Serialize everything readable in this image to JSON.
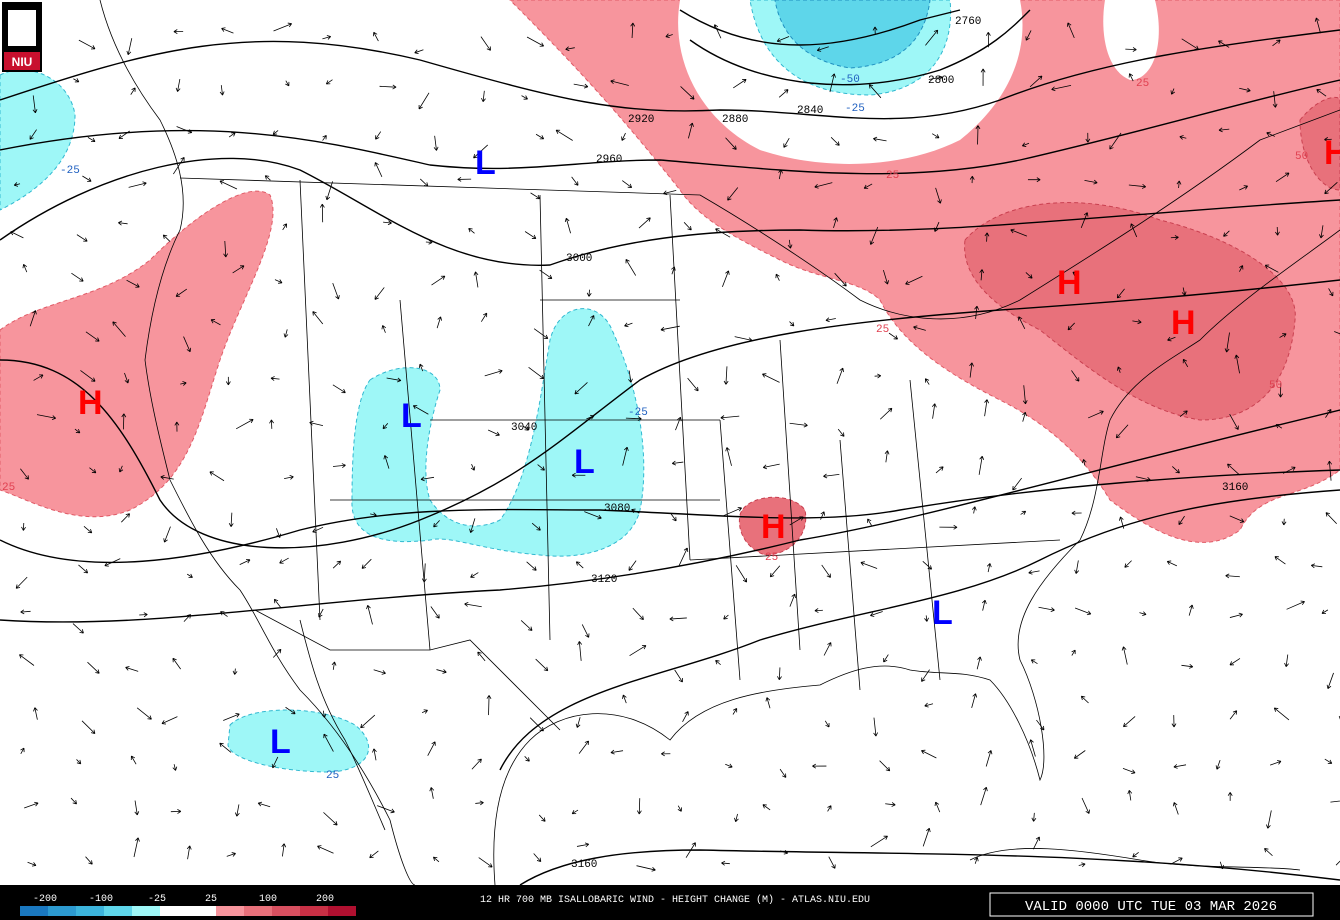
{
  "logo": "NIU",
  "contour_labels": [
    2760,
    2800,
    2840,
    2880,
    2920,
    2960,
    3000,
    3040,
    3080,
    3120,
    3160,
    3160
  ],
  "height_change_labels": [
    -25,
    -50,
    -25,
    25,
    50,
    25,
    25,
    -25,
    50,
    25,
    25,
    25
  ],
  "highs": [
    "H",
    "H",
    "H",
    "H",
    "H"
  ],
  "lows": [
    "L",
    "L",
    "L",
    "L",
    "L"
  ],
  "legend": {
    "labels": [
      -200,
      -100,
      -25,
      25,
      100,
      200
    ]
  },
  "footer": {
    "title": "12 HR 700 MB ISALLOBARIC WIND - HEIGHT CHANGE (M) - ATLAS.NIU.EDU",
    "valid": "VALID 0000 UTC TUE 03 MAR 2026"
  }
}
